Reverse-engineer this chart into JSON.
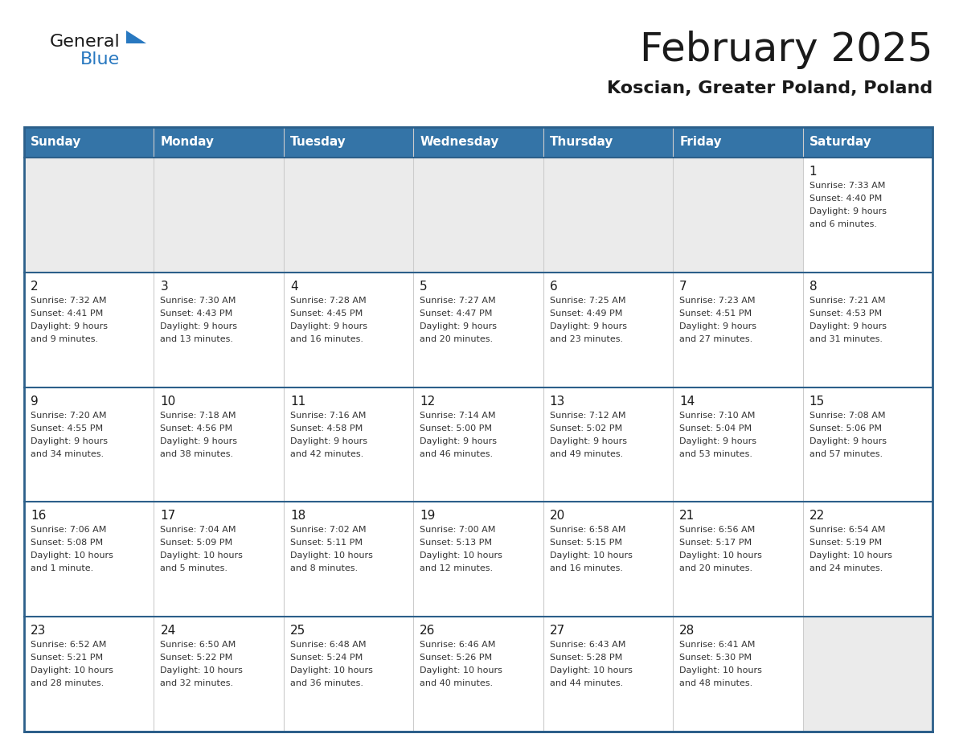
{
  "title": "February 2025",
  "subtitle": "Koscian, Greater Poland, Poland",
  "header_color": "#3474a7",
  "header_text_color": "#ffffff",
  "cell_bg_color": "#ffffff",
  "alt_cell_bg_color": "#ebebeb",
  "border_color": "#2c5f8a",
  "row_divider_color": "#2c5f8a",
  "col_divider_color": "#cccccc",
  "days_of_week": [
    "Sunday",
    "Monday",
    "Tuesday",
    "Wednesday",
    "Thursday",
    "Friday",
    "Saturday"
  ],
  "calendar_data": [
    [
      null,
      null,
      null,
      null,
      null,
      null,
      {
        "day": "1",
        "sunrise": "7:33 AM",
        "sunset": "4:40 PM",
        "daylight": "9 hours\nand 6 minutes."
      }
    ],
    [
      {
        "day": "2",
        "sunrise": "7:32 AM",
        "sunset": "4:41 PM",
        "daylight": "9 hours\nand 9 minutes."
      },
      {
        "day": "3",
        "sunrise": "7:30 AM",
        "sunset": "4:43 PM",
        "daylight": "9 hours\nand 13 minutes."
      },
      {
        "day": "4",
        "sunrise": "7:28 AM",
        "sunset": "4:45 PM",
        "daylight": "9 hours\nand 16 minutes."
      },
      {
        "day": "5",
        "sunrise": "7:27 AM",
        "sunset": "4:47 PM",
        "daylight": "9 hours\nand 20 minutes."
      },
      {
        "day": "6",
        "sunrise": "7:25 AM",
        "sunset": "4:49 PM",
        "daylight": "9 hours\nand 23 minutes."
      },
      {
        "day": "7",
        "sunrise": "7:23 AM",
        "sunset": "4:51 PM",
        "daylight": "9 hours\nand 27 minutes."
      },
      {
        "day": "8",
        "sunrise": "7:21 AM",
        "sunset": "4:53 PM",
        "daylight": "9 hours\nand 31 minutes."
      }
    ],
    [
      {
        "day": "9",
        "sunrise": "7:20 AM",
        "sunset": "4:55 PM",
        "daylight": "9 hours\nand 34 minutes."
      },
      {
        "day": "10",
        "sunrise": "7:18 AM",
        "sunset": "4:56 PM",
        "daylight": "9 hours\nand 38 minutes."
      },
      {
        "day": "11",
        "sunrise": "7:16 AM",
        "sunset": "4:58 PM",
        "daylight": "9 hours\nand 42 minutes."
      },
      {
        "day": "12",
        "sunrise": "7:14 AM",
        "sunset": "5:00 PM",
        "daylight": "9 hours\nand 46 minutes."
      },
      {
        "day": "13",
        "sunrise": "7:12 AM",
        "sunset": "5:02 PM",
        "daylight": "9 hours\nand 49 minutes."
      },
      {
        "day": "14",
        "sunrise": "7:10 AM",
        "sunset": "5:04 PM",
        "daylight": "9 hours\nand 53 minutes."
      },
      {
        "day": "15",
        "sunrise": "7:08 AM",
        "sunset": "5:06 PM",
        "daylight": "9 hours\nand 57 minutes."
      }
    ],
    [
      {
        "day": "16",
        "sunrise": "7:06 AM",
        "sunset": "5:08 PM",
        "daylight": "10 hours\nand 1 minute."
      },
      {
        "day": "17",
        "sunrise": "7:04 AM",
        "sunset": "5:09 PM",
        "daylight": "10 hours\nand 5 minutes."
      },
      {
        "day": "18",
        "sunrise": "7:02 AM",
        "sunset": "5:11 PM",
        "daylight": "10 hours\nand 8 minutes."
      },
      {
        "day": "19",
        "sunrise": "7:00 AM",
        "sunset": "5:13 PM",
        "daylight": "10 hours\nand 12 minutes."
      },
      {
        "day": "20",
        "sunrise": "6:58 AM",
        "sunset": "5:15 PM",
        "daylight": "10 hours\nand 16 minutes."
      },
      {
        "day": "21",
        "sunrise": "6:56 AM",
        "sunset": "5:17 PM",
        "daylight": "10 hours\nand 20 minutes."
      },
      {
        "day": "22",
        "sunrise": "6:54 AM",
        "sunset": "5:19 PM",
        "daylight": "10 hours\nand 24 minutes."
      }
    ],
    [
      {
        "day": "23",
        "sunrise": "6:52 AM",
        "sunset": "5:21 PM",
        "daylight": "10 hours\nand 28 minutes."
      },
      {
        "day": "24",
        "sunrise": "6:50 AM",
        "sunset": "5:22 PM",
        "daylight": "10 hours\nand 32 minutes."
      },
      {
        "day": "25",
        "sunrise": "6:48 AM",
        "sunset": "5:24 PM",
        "daylight": "10 hours\nand 36 minutes."
      },
      {
        "day": "26",
        "sunrise": "6:46 AM",
        "sunset": "5:26 PM",
        "daylight": "10 hours\nand 40 minutes."
      },
      {
        "day": "27",
        "sunrise": "6:43 AM",
        "sunset": "5:28 PM",
        "daylight": "10 hours\nand 44 minutes."
      },
      {
        "day": "28",
        "sunrise": "6:41 AM",
        "sunset": "5:30 PM",
        "daylight": "10 hours\nand 48 minutes."
      },
      null
    ]
  ],
  "logo_general_color": "#1a1a1a",
  "logo_blue_color": "#2878c0",
  "logo_triangle_color": "#2878c0",
  "title_fontsize": 36,
  "subtitle_fontsize": 16,
  "header_fontsize": 11,
  "day_num_fontsize": 11,
  "cell_text_fontsize": 8
}
